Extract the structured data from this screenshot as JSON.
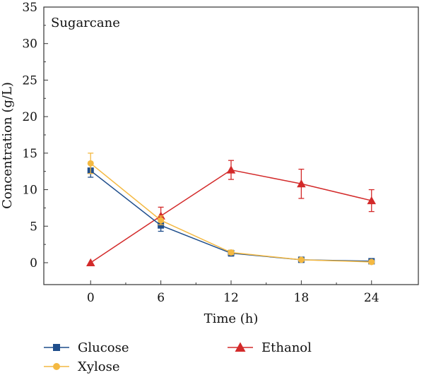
{
  "chart_data": {
    "type": "line",
    "title": "Sugarcane",
    "xlabel": "Time (h)",
    "ylabel": "Concentration (g/L)",
    "xlim": [
      -4,
      28
    ],
    "ylim": [
      -3,
      35
    ],
    "xticks": [
      0,
      6,
      12,
      18,
      24
    ],
    "yticks": [
      0,
      5,
      10,
      15,
      20,
      25,
      30,
      35
    ],
    "x": [
      0,
      6,
      12,
      18,
      24
    ],
    "grid": false,
    "legend_position": "bottom",
    "series": [
      {
        "name": "Glucose",
        "color": "#1f4e8c",
        "marker": "square",
        "values": [
          12.6,
          5.1,
          1.3,
          0.4,
          0.2
        ],
        "errors": [
          0.9,
          0.8,
          0.4,
          0.3,
          0.3
        ]
      },
      {
        "name": "Xylose",
        "color": "#f4b942",
        "marker": "circle",
        "values": [
          13.6,
          5.8,
          1.4,
          0.4,
          0.1
        ],
        "errors": [
          1.4,
          0.6,
          0.3,
          0.2,
          0.2
        ]
      },
      {
        "name": "Ethanol",
        "color": "#d32a2a",
        "marker": "triangle",
        "values": [
          0.0,
          6.4,
          12.7,
          10.8,
          8.5
        ],
        "errors": [
          0.0,
          1.2,
          1.3,
          2.0,
          1.5
        ]
      }
    ]
  }
}
